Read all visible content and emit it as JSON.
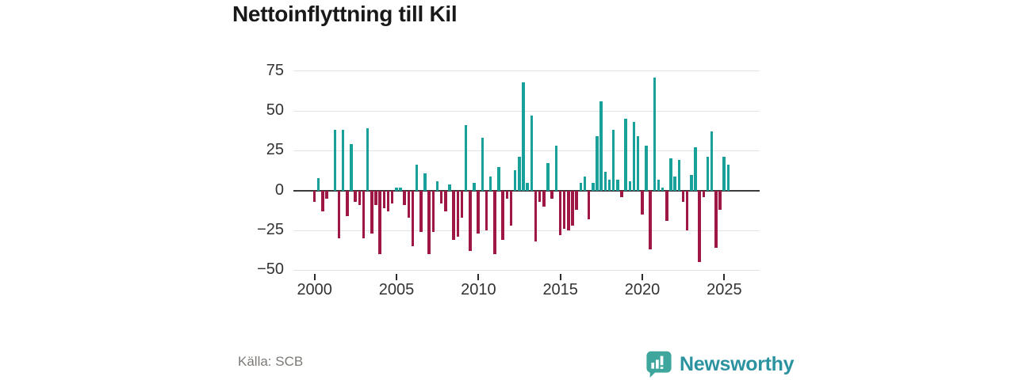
{
  "title": "Nettoinflyttning till Kil",
  "source": "Källa: SCB",
  "logo": {
    "text": "Newsworthy"
  },
  "colors": {
    "positive": "#18a19b",
    "negative": "#9e1745",
    "zero_line": "#3a3a3a",
    "gridline": "#e2e2e2",
    "axis_text": "#333333",
    "source_text": "#7d7a76",
    "logo_icon": "#3fa69e",
    "logo_text": "#2b93a0"
  },
  "chart_data": {
    "type": "bar",
    "title": "Nettoinflyttning till Kil",
    "xlabel": "",
    "ylabel": "",
    "frequency": "quarterly",
    "start_period": "2000 Q1",
    "end_period": "2025 Q2",
    "ylim": [
      -50,
      75
    ],
    "yticks": [
      75,
      50,
      25,
      0,
      -25,
      -50
    ],
    "xticks": [
      2000,
      2005,
      2010,
      2015,
      2020,
      2025
    ],
    "grid": "horizontal",
    "legend": "none",
    "series": [
      {
        "name": "Nettoinflyttning",
        "values": [
          -7,
          8,
          -13,
          -5,
          0,
          38,
          -30,
          38,
          -16,
          29,
          -7,
          -9,
          -30,
          39,
          -27,
          -9,
          -40,
          -11,
          -13,
          -8,
          2,
          2,
          -9,
          -17,
          -35,
          16,
          -26,
          11,
          -40,
          -26,
          6,
          -8,
          -13,
          4,
          -31,
          -29,
          -17,
          41,
          -38,
          5,
          -27,
          33,
          -25,
          9,
          -40,
          15,
          -31,
          -5,
          -22,
          13,
          21,
          68,
          5,
          47,
          -32,
          -7,
          -10,
          17,
          -5,
          28,
          -28,
          -24,
          -25,
          -22,
          -12,
          5,
          9,
          -18,
          5,
          34,
          56,
          12,
          7,
          38,
          7,
          -4,
          45,
          6,
          43,
          34,
          -15,
          28,
          -37,
          71,
          7,
          2,
          -19,
          20,
          9,
          19,
          -7,
          -25,
          10,
          27,
          -45,
          -4,
          21,
          37,
          -36,
          -12,
          21,
          16
        ]
      }
    ]
  }
}
